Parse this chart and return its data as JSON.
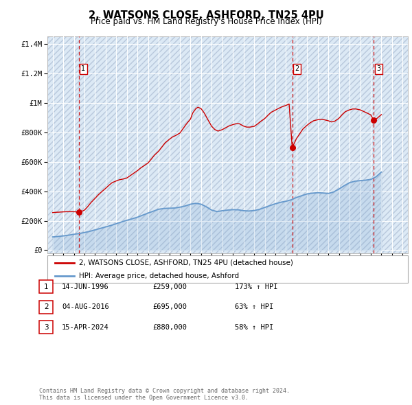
{
  "title": "2, WATSONS CLOSE, ASHFORD, TN25 4PU",
  "subtitle": "Price paid vs. HM Land Registry's House Price Index (HPI)",
  "title_fontsize": 10.5,
  "subtitle_fontsize": 8.5,
  "bg_color": "#ffffff",
  "plot_bg_color": "#dce9f5",
  "hatch_color": "#b8c8dc",
  "grid_color": "#ffffff",
  "red_line_color": "#cc0000",
  "blue_line_color": "#6699cc",
  "sale_dot_color": "#cc0000",
  "vline_color": "#cc0000",
  "box_color": "#cc0000",
  "ylabel_vals": [
    0,
    200000,
    400000,
    600000,
    800000,
    1000000,
    1200000,
    1400000
  ],
  "ylabel_strs": [
    "£0",
    "£200K",
    "£400K",
    "£600K",
    "£800K",
    "£1M",
    "£1.2M",
    "£1.4M"
  ],
  "xlim_start": 1993.5,
  "xlim_end": 2027.5,
  "ylim_min": -20000,
  "ylim_max": 1450000,
  "sale_dates": [
    1996.45,
    2016.59,
    2024.29
  ],
  "sale_prices": [
    259000,
    695000,
    880000
  ],
  "sale_labels": [
    "1",
    "2",
    "3"
  ],
  "legend_red_label": "2, WATSONS CLOSE, ASHFORD, TN25 4PU (detached house)",
  "legend_blue_label": "HPI: Average price, detached house, Ashford",
  "table_rows": [
    {
      "num": "1",
      "date": "14-JUN-1996",
      "price": "£259,000",
      "change": "173% ↑ HPI"
    },
    {
      "num": "2",
      "date": "04-AUG-2016",
      "price": "£695,000",
      "change": "63% ↑ HPI"
    },
    {
      "num": "3",
      "date": "15-APR-2024",
      "price": "£880,000",
      "change": "58% ↑ HPI"
    }
  ],
  "footnote": "Contains HM Land Registry data © Crown copyright and database right 2024.\nThis data is licensed under the Open Government Licence v3.0.",
  "hpi_x": [
    1994.0,
    1994.5,
    1995.0,
    1995.5,
    1996.0,
    1996.5,
    1997.0,
    1997.5,
    1998.0,
    1998.5,
    1999.0,
    1999.5,
    2000.0,
    2000.5,
    2001.0,
    2001.5,
    2002.0,
    2002.5,
    2003.0,
    2003.5,
    2004.0,
    2004.5,
    2005.0,
    2005.5,
    2006.0,
    2006.5,
    2007.0,
    2007.5,
    2008.0,
    2008.5,
    2009.0,
    2009.5,
    2010.0,
    2010.5,
    2011.0,
    2011.5,
    2012.0,
    2012.5,
    2013.0,
    2013.5,
    2014.0,
    2014.5,
    2015.0,
    2015.5,
    2016.0,
    2016.5,
    2017.0,
    2017.5,
    2018.0,
    2018.5,
    2019.0,
    2019.5,
    2020.0,
    2020.5,
    2021.0,
    2021.5,
    2022.0,
    2022.5,
    2023.0,
    2023.5,
    2024.0,
    2024.5,
    2025.0
  ],
  "hpi_y": [
    90000,
    93000,
    97000,
    102000,
    108000,
    113000,
    120000,
    128000,
    138000,
    148000,
    158000,
    168000,
    180000,
    192000,
    203000,
    213000,
    224000,
    238000,
    252000,
    265000,
    278000,
    283000,
    285000,
    286000,
    292000,
    300000,
    312000,
    318000,
    312000,
    294000,
    272000,
    262000,
    268000,
    272000,
    275000,
    274000,
    268000,
    266000,
    269000,
    277000,
    290000,
    303000,
    315000,
    325000,
    332000,
    342000,
    358000,
    370000,
    382000,
    387000,
    390000,
    388000,
    385000,
    395000,
    415000,
    438000,
    458000,
    468000,
    472000,
    475000,
    480000,
    498000,
    530000
  ],
  "price_x": [
    1994.0,
    1994.3,
    1994.6,
    1995.0,
    1995.3,
    1995.6,
    1996.0,
    1996.2,
    1996.45,
    1996.7,
    1997.0,
    1997.3,
    1997.6,
    1998.0,
    1998.3,
    1998.6,
    1999.0,
    1999.3,
    1999.6,
    2000.0,
    2000.3,
    2000.6,
    2001.0,
    2001.3,
    2001.6,
    2002.0,
    2002.3,
    2002.6,
    2003.0,
    2003.3,
    2003.6,
    2004.0,
    2004.3,
    2004.6,
    2005.0,
    2005.3,
    2005.6,
    2006.0,
    2006.3,
    2006.6,
    2007.0,
    2007.2,
    2007.5,
    2007.7,
    2008.0,
    2008.3,
    2008.6,
    2009.0,
    2009.3,
    2009.6,
    2010.0,
    2010.3,
    2010.6,
    2011.0,
    2011.3,
    2011.6,
    2012.0,
    2012.3,
    2012.6,
    2013.0,
    2013.3,
    2013.6,
    2014.0,
    2014.3,
    2014.6,
    2015.0,
    2015.3,
    2015.6,
    2016.0,
    2016.3,
    2016.59,
    2016.8,
    2017.0,
    2017.3,
    2017.6,
    2018.0,
    2018.3,
    2018.6,
    2019.0,
    2019.3,
    2019.6,
    2020.0,
    2020.3,
    2020.6,
    2021.0,
    2021.3,
    2021.6,
    2022.0,
    2022.3,
    2022.6,
    2023.0,
    2023.3,
    2023.6,
    2024.0,
    2024.29,
    2024.6,
    2025.0
  ],
  "price_y": [
    255000,
    257000,
    258000,
    260000,
    261000,
    261000,
    261000,
    260000,
    259000,
    262000,
    272000,
    295000,
    322000,
    352000,
    375000,
    395000,
    420000,
    440000,
    458000,
    470000,
    478000,
    482000,
    490000,
    505000,
    520000,
    540000,
    558000,
    572000,
    592000,
    618000,
    645000,
    672000,
    700000,
    728000,
    752000,
    768000,
    778000,
    795000,
    825000,
    855000,
    890000,
    930000,
    960000,
    970000,
    960000,
    930000,
    890000,
    840000,
    818000,
    808000,
    818000,
    830000,
    842000,
    852000,
    858000,
    858000,
    842000,
    835000,
    835000,
    840000,
    855000,
    873000,
    893000,
    915000,
    935000,
    950000,
    962000,
    972000,
    982000,
    992000,
    695000,
    728000,
    758000,
    790000,
    822000,
    848000,
    865000,
    878000,
    885000,
    888000,
    885000,
    878000,
    870000,
    875000,
    895000,
    920000,
    940000,
    952000,
    958000,
    958000,
    952000,
    942000,
    932000,
    918000,
    880000,
    895000,
    920000
  ]
}
